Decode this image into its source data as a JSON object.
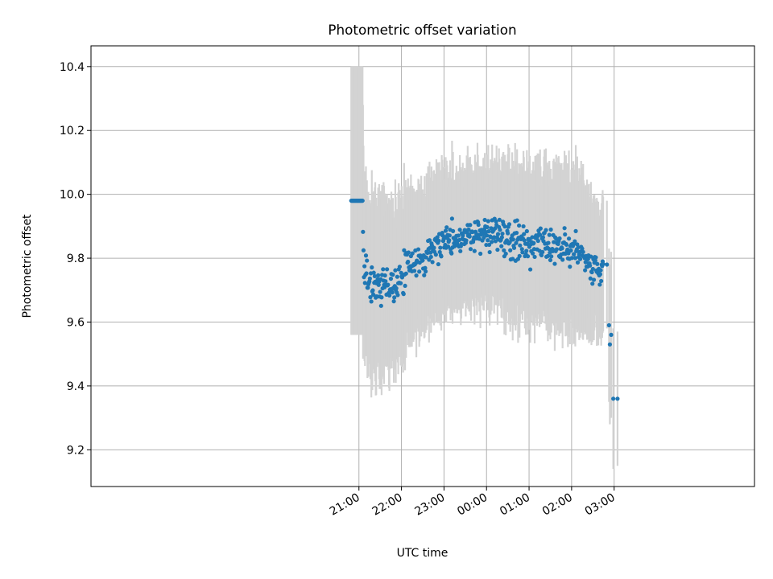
{
  "chart_data": {
    "type": "scatter",
    "title": "Photometric offset variation",
    "xlabel": "UTC time",
    "ylabel": "Photometric offset",
    "xlim": [
      -9.3,
      6.3
    ],
    "ylim": [
      9.085,
      10.465
    ],
    "x_unit": "hours relative to 00:00 UTC",
    "x_ticks": [
      {
        "value": -3,
        "label": "21:00"
      },
      {
        "value": -2,
        "label": "22:00"
      },
      {
        "value": -1,
        "label": "23:00"
      },
      {
        "value": 0,
        "label": "00:00"
      },
      {
        "value": 1,
        "label": "01:00"
      },
      {
        "value": 2,
        "label": "02:00"
      },
      {
        "value": 3,
        "label": "03:00"
      }
    ],
    "y_ticks": [
      {
        "value": 9.2,
        "label": "9.2"
      },
      {
        "value": 9.4,
        "label": "9.4"
      },
      {
        "value": 9.6,
        "label": "9.6"
      },
      {
        "value": 9.8,
        "label": "9.8"
      },
      {
        "value": 10.0,
        "label": "10.0"
      },
      {
        "value": 10.2,
        "label": "10.2"
      },
      {
        "value": 10.4,
        "label": "10.4"
      }
    ],
    "grid": true,
    "colors": {
      "points": "#1f77b4",
      "errorbars": "#d3d3d3"
    },
    "profile": [
      [
        20.82,
        9.98,
        0.42
      ],
      [
        21.08,
        9.98,
        0.42
      ],
      [
        21.11,
        9.78,
        0.3
      ],
      [
        21.25,
        9.72,
        0.26
      ],
      [
        21.5,
        9.71,
        0.27
      ],
      [
        21.75,
        9.7,
        0.26
      ],
      [
        22.0,
        9.74,
        0.24
      ],
      [
        22.25,
        9.79,
        0.22
      ],
      [
        22.5,
        9.79,
        0.22
      ],
      [
        22.75,
        9.84,
        0.22
      ],
      [
        23.0,
        9.86,
        0.21
      ],
      [
        23.5,
        9.87,
        0.21
      ],
      [
        24.0,
        9.88,
        0.21
      ],
      [
        24.5,
        9.86,
        0.22
      ],
      [
        25.0,
        9.84,
        0.23
      ],
      [
        25.5,
        9.83,
        0.23
      ],
      [
        26.0,
        9.83,
        0.24
      ],
      [
        26.25,
        9.82,
        0.24
      ],
      [
        26.5,
        9.76,
        0.2
      ],
      [
        26.75,
        9.77,
        0.19
      ]
    ],
    "tail_points": [
      [
        26.83,
        9.78,
        0.2
      ],
      [
        26.88,
        9.59,
        0.24
      ],
      [
        26.9,
        9.53,
        0.25
      ],
      [
        26.93,
        9.56,
        0.26
      ],
      [
        26.98,
        9.36,
        0.22
      ],
      [
        27.08,
        9.36,
        0.21
      ]
    ]
  }
}
